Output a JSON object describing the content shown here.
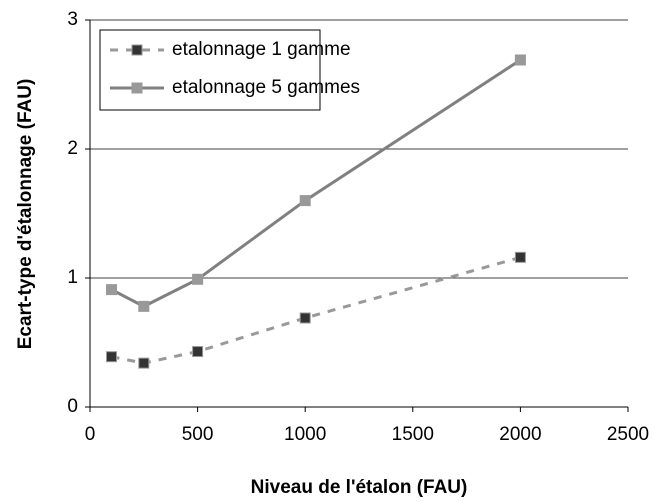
{
  "chart_data": {
    "type": "line",
    "xlabel": "Niveau de l'étalon (FAU)",
    "ylabel": "Ecart-type d'étalonnage (FAU)",
    "x": [
      100,
      250,
      500,
      1000,
      2000
    ],
    "series": [
      {
        "name": "etalonnage 1 gamme",
        "color": "#999999",
        "marker_color": "#333333",
        "linestyle": "dashed",
        "values": [
          0.39,
          0.34,
          0.43,
          0.69,
          1.16
        ]
      },
      {
        "name": "etalonnage 5 gammes",
        "color": "#808080",
        "marker_color": "#999999",
        "linestyle": "solid",
        "values": [
          0.91,
          0.78,
          0.99,
          1.6,
          2.69
        ]
      }
    ],
    "xlim": [
      0,
      2500
    ],
    "xticks": [
      0,
      500,
      1000,
      1500,
      2000,
      2500
    ],
    "ylim": [
      0,
      3
    ],
    "yticks": [
      0,
      1,
      2,
      3
    ],
    "grid": true,
    "legend": "upper left"
  }
}
